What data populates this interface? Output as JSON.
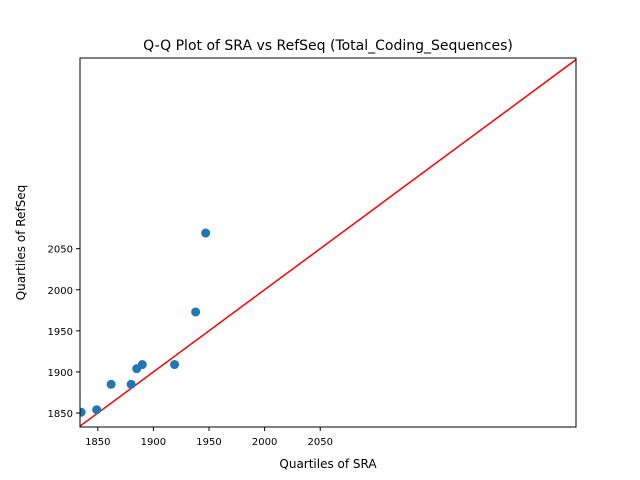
{
  "chart_data": {
    "type": "scatter",
    "title": "Q-Q Plot of SRA vs RefSeq (Total_Coding_Sequences)",
    "xlabel": "Quartiles of SRA",
    "ylabel": "Quartiles of RefSeq",
    "xlim": [
      1834,
      2280
    ],
    "ylim": [
      1833,
      2282
    ],
    "xticks": [
      1850,
      1900,
      1950,
      2000,
      2050
    ],
    "yticks": [
      1850,
      1900,
      1950,
      2000,
      2050
    ],
    "grid": false,
    "series": [
      {
        "marker_color": "#1f77b4",
        "points": [
          {
            "x": 1835,
            "y": 1851
          },
          {
            "x": 1849,
            "y": 1854
          },
          {
            "x": 1862,
            "y": 1885
          },
          {
            "x": 1880,
            "y": 1885
          },
          {
            "x": 1885,
            "y": 1904
          },
          {
            "x": 1890,
            "y": 1909
          },
          {
            "x": 1919,
            "y": 1909
          },
          {
            "x": 1938,
            "y": 1973
          },
          {
            "x": 1947,
            "y": 2069
          }
        ]
      }
    ],
    "reference_line": {
      "color": "#ff0000",
      "from": [
        1834,
        1834
      ],
      "to": [
        2280,
        2280
      ]
    }
  }
}
